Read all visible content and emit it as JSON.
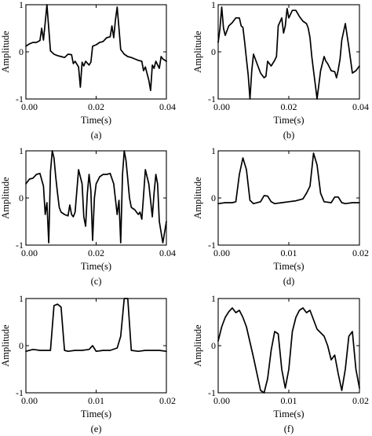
{
  "figure": {
    "panels": [
      {
        "caption": "(a)",
        "ylabel": "Amplitude",
        "xlabel": "Time(s)"
      },
      {
        "caption": "(b)",
        "ylabel": "Amplitude",
        "xlabel": "Time(s)"
      },
      {
        "caption": "(c)",
        "ylabel": "Amplitude",
        "xlabel": "Time(s)"
      },
      {
        "caption": "(d)",
        "ylabel": "Amplitude",
        "xlabel": "Time(s)"
      },
      {
        "caption": "(e)",
        "ylabel": "Amplitude",
        "xlabel": "Time(s)"
      },
      {
        "caption": "(f)",
        "ylabel": "Amplitude",
        "xlabel": "Time(s)"
      }
    ]
  },
  "chart_data": [
    {
      "type": "line",
      "caption": "(a)",
      "xlabel": "Time(s)",
      "ylabel": "Amplitude",
      "xlim": [
        0,
        0.04
      ],
      "ylim": [
        -1,
        1
      ],
      "xticks": [
        0,
        0.02,
        0.04
      ],
      "xtick_labels": [
        "0.00",
        "0.02",
        "0.04"
      ],
      "yticks": [
        -1,
        0,
        1
      ],
      "ytick_labels": [
        "-1",
        "0",
        "1"
      ],
      "series": [
        {
          "x": [
            0,
            0.001,
            0.002,
            0.003,
            0.004,
            0.0045,
            0.005,
            0.0055,
            0.006,
            0.0065,
            0.007,
            0.008,
            0.009,
            0.01,
            0.011,
            0.012,
            0.013,
            0.0135,
            0.014,
            0.015,
            0.0155,
            0.016,
            0.0165,
            0.017,
            0.018,
            0.0185,
            0.019,
            0.02,
            0.021,
            0.022,
            0.023,
            0.024,
            0.0245,
            0.025,
            0.0255,
            0.026,
            0.0265,
            0.027,
            0.028,
            0.029,
            0.03,
            0.031,
            0.032,
            0.033,
            0.0335,
            0.034,
            0.035,
            0.0355,
            0.036,
            0.0365,
            0.037,
            0.038,
            0.0385,
            0.039,
            0.04
          ],
          "y": [
            0.12,
            0.17,
            0.2,
            0.2,
            0.24,
            0.5,
            0.25,
            0.62,
            1.0,
            0.5,
            0.02,
            -0.05,
            -0.08,
            -0.1,
            -0.12,
            -0.05,
            -0.06,
            -0.25,
            -0.2,
            -0.32,
            -0.75,
            -0.22,
            -0.3,
            -0.2,
            -0.28,
            -0.22,
            0.12,
            0.15,
            0.2,
            0.22,
            0.3,
            0.32,
            0.55,
            0.3,
            0.68,
            0.95,
            0.5,
            0.05,
            -0.05,
            -0.1,
            -0.12,
            -0.15,
            -0.18,
            -0.2,
            -0.4,
            -0.32,
            -0.6,
            -0.82,
            -0.28,
            -0.35,
            -0.2,
            -0.35,
            -0.1,
            -0.15,
            -0.2
          ]
        }
      ]
    },
    {
      "type": "line",
      "caption": "(b)",
      "xlabel": "Time(s)",
      "ylabel": "Amplitude",
      "xlim": [
        0,
        0.04
      ],
      "ylim": [
        -1,
        1
      ],
      "xticks": [
        0,
        0.02,
        0.04
      ],
      "xtick_labels": [
        "0.00",
        "0.02",
        "0.04"
      ],
      "yticks": [
        -1,
        0,
        1
      ],
      "ytick_labels": [
        "-1",
        "0",
        "1"
      ],
      "series": [
        {
          "x": [
            0,
            0.0005,
            0.001,
            0.0015,
            0.002,
            0.003,
            0.004,
            0.005,
            0.006,
            0.0065,
            0.007,
            0.0075,
            0.008,
            0.0085,
            0.009,
            0.0095,
            0.01,
            0.011,
            0.012,
            0.013,
            0.0135,
            0.014,
            0.015,
            0.016,
            0.0165,
            0.017,
            0.018,
            0.0185,
            0.019,
            0.0195,
            0.02,
            0.021,
            0.022,
            0.023,
            0.024,
            0.025,
            0.0255,
            0.026,
            0.0265,
            0.027,
            0.0275,
            0.028,
            0.029,
            0.03,
            0.0305,
            0.031,
            0.032,
            0.033,
            0.0335,
            0.034,
            0.0345,
            0.035,
            0.036,
            0.037,
            0.038,
            0.039,
            0.04
          ],
          "y": [
            0.2,
            0.5,
            0.95,
            0.5,
            0.35,
            0.55,
            0.62,
            0.72,
            0.72,
            0.55,
            0.52,
            0.2,
            -0.15,
            -0.5,
            -1.0,
            -0.4,
            -0.05,
            -0.25,
            -0.45,
            -0.55,
            -0.52,
            -0.2,
            -0.3,
            -0.18,
            -0.1,
            0.55,
            0.72,
            0.4,
            0.55,
            0.92,
            0.72,
            0.88,
            0.88,
            0.75,
            0.65,
            0.6,
            0.5,
            0.3,
            -0.1,
            -0.4,
            -0.7,
            -1.0,
            -0.4,
            -0.1,
            -0.2,
            -0.25,
            -0.4,
            -0.42,
            -0.55,
            -0.38,
            -0.15,
            0.25,
            0.6,
            0.1,
            -0.45,
            -0.4,
            -0.3
          ]
        }
      ]
    },
    {
      "type": "line",
      "caption": "(c)",
      "xlabel": "Time(s)",
      "ylabel": "Amplitude",
      "xlim": [
        0,
        0.04
      ],
      "ylim": [
        -1,
        1
      ],
      "xticks": [
        0,
        0.02,
        0.04
      ],
      "xtick_labels": [
        "0.00",
        "0.02",
        "0.04"
      ],
      "yticks": [
        -1,
        0,
        1
      ],
      "ytick_labels": [
        "-1",
        "0",
        "1"
      ],
      "series": [
        {
          "x": [
            0,
            0.001,
            0.002,
            0.003,
            0.004,
            0.005,
            0.0055,
            0.006,
            0.0065,
            0.007,
            0.0075,
            0.008,
            0.0085,
            0.009,
            0.0095,
            0.01,
            0.011,
            0.012,
            0.0125,
            0.013,
            0.0135,
            0.014,
            0.015,
            0.016,
            0.0165,
            0.017,
            0.0175,
            0.018,
            0.0185,
            0.019,
            0.0195,
            0.02,
            0.021,
            0.022,
            0.023,
            0.024,
            0.025,
            0.026,
            0.0265,
            0.027,
            0.0275,
            0.028,
            0.0285,
            0.029,
            0.0295,
            0.03,
            0.031,
            0.032,
            0.0325,
            0.033,
            0.0335,
            0.034,
            0.035,
            0.036,
            0.0365,
            0.037,
            0.0375,
            0.038,
            0.039,
            0.04
          ],
          "y": [
            0.3,
            0.4,
            0.42,
            0.5,
            0.52,
            0.25,
            -0.35,
            -0.1,
            -0.95,
            0.55,
            1.0,
            0.85,
            0.45,
            0.1,
            -0.2,
            -0.3,
            -0.35,
            -0.38,
            -0.15,
            -0.35,
            -0.4,
            -0.3,
            0.6,
            0.3,
            -0.4,
            -0.6,
            0.1,
            0.5,
            0.15,
            -0.9,
            0.0,
            0.3,
            0.45,
            0.5,
            0.5,
            0.52,
            0.3,
            -0.35,
            -0.05,
            -0.95,
            0.5,
            1.0,
            0.8,
            0.4,
            0.0,
            -0.2,
            -0.25,
            -0.35,
            -0.3,
            -0.45,
            0.05,
            0.6,
            0.3,
            -0.4,
            0.1,
            0.5,
            0.3,
            -0.5,
            -0.95,
            -0.5
          ]
        }
      ]
    },
    {
      "type": "line",
      "caption": "(d)",
      "xlabel": "Time(s)",
      "ylabel": "Amplitude",
      "xlim": [
        0,
        0.02
      ],
      "ylim": [
        -1,
        1
      ],
      "xticks": [
        0,
        0.01,
        0.02
      ],
      "xtick_labels": [
        "0.00",
        "0.01",
        "0.02"
      ],
      "yticks": [
        -1,
        0,
        1
      ],
      "ytick_labels": [
        "-1",
        "0",
        "1"
      ],
      "series": [
        {
          "x": [
            0,
            0.001,
            0.002,
            0.0025,
            0.003,
            0.0035,
            0.004,
            0.0045,
            0.005,
            0.006,
            0.0065,
            0.007,
            0.0075,
            0.008,
            0.009,
            0.01,
            0.011,
            0.012,
            0.0125,
            0.013,
            0.0135,
            0.014,
            0.0145,
            0.015,
            0.016,
            0.0165,
            0.017,
            0.0175,
            0.018,
            0.019,
            0.02
          ],
          "y": [
            -0.12,
            -0.1,
            -0.1,
            -0.08,
            0.5,
            0.85,
            0.6,
            -0.05,
            -0.12,
            -0.08,
            0.05,
            0.04,
            -0.08,
            -0.12,
            -0.1,
            -0.08,
            -0.06,
            -0.02,
            0.1,
            0.25,
            0.95,
            0.7,
            0.1,
            -0.08,
            -0.1,
            0.02,
            0.02,
            -0.1,
            -0.12,
            -0.1,
            -0.1
          ]
        }
      ]
    },
    {
      "type": "line",
      "caption": "(e)",
      "xlabel": "Time(s)",
      "ylabel": "Amplitude",
      "xlim": [
        0,
        0.02
      ],
      "ylim": [
        -1,
        1
      ],
      "xticks": [
        0,
        0.01,
        0.02
      ],
      "xtick_labels": [
        "0.00",
        "0.01",
        "0.02"
      ],
      "yticks": [
        -1,
        0,
        1
      ],
      "ytick_labels": [
        "-1",
        "0",
        "1"
      ],
      "series": [
        {
          "x": [
            0,
            0.001,
            0.002,
            0.003,
            0.0035,
            0.004,
            0.0045,
            0.005,
            0.0055,
            0.006,
            0.007,
            0.008,
            0.009,
            0.0095,
            0.01,
            0.011,
            0.012,
            0.013,
            0.0135,
            0.014,
            0.0145,
            0.015,
            0.016,
            0.017,
            0.018,
            0.019,
            0.02
          ],
          "y": [
            -0.12,
            -0.08,
            -0.1,
            -0.1,
            -0.1,
            0.85,
            0.88,
            0.82,
            -0.1,
            -0.12,
            -0.1,
            -0.1,
            -0.08,
            0.0,
            -0.12,
            -0.1,
            -0.1,
            -0.05,
            0.2,
            1.0,
            1.0,
            -0.1,
            -0.12,
            -0.1,
            -0.1,
            -0.1,
            -0.12
          ]
        }
      ]
    },
    {
      "type": "line",
      "caption": "(f)",
      "xlabel": "Time(s)",
      "ylabel": "Amplitude",
      "xlim": [
        0,
        0.02
      ],
      "ylim": [
        -1,
        1
      ],
      "xticks": [
        0,
        0.01,
        0.02
      ],
      "xtick_labels": [
        "0.00",
        "0.01",
        "0.02"
      ],
      "yticks": [
        -1,
        0,
        1
      ],
      "ytick_labels": [
        "-1",
        "0",
        "1"
      ],
      "series": [
        {
          "x": [
            0,
            0.0005,
            0.001,
            0.0015,
            0.002,
            0.0025,
            0.003,
            0.0035,
            0.004,
            0.005,
            0.0055,
            0.006,
            0.0065,
            0.007,
            0.0075,
            0.008,
            0.0085,
            0.009,
            0.0095,
            0.01,
            0.0105,
            0.011,
            0.0115,
            0.012,
            0.0125,
            0.013,
            0.0135,
            0.014,
            0.015,
            0.0155,
            0.016,
            0.0165,
            0.017,
            0.0175,
            0.018,
            0.0185,
            0.019,
            0.0195,
            0.02
          ],
          "y": [
            0.1,
            0.4,
            0.6,
            0.72,
            0.8,
            0.7,
            0.75,
            0.6,
            0.4,
            -0.25,
            -0.6,
            -0.95,
            -1.0,
            -0.7,
            -0.1,
            0.3,
            0.25,
            -0.5,
            -0.9,
            -0.5,
            0.3,
            0.6,
            0.75,
            0.8,
            0.7,
            0.75,
            0.55,
            0.35,
            0.2,
            0.0,
            -0.3,
            -0.2,
            -0.6,
            -0.95,
            -0.5,
            0.2,
            0.3,
            -0.5,
            -0.9
          ]
        }
      ]
    }
  ]
}
